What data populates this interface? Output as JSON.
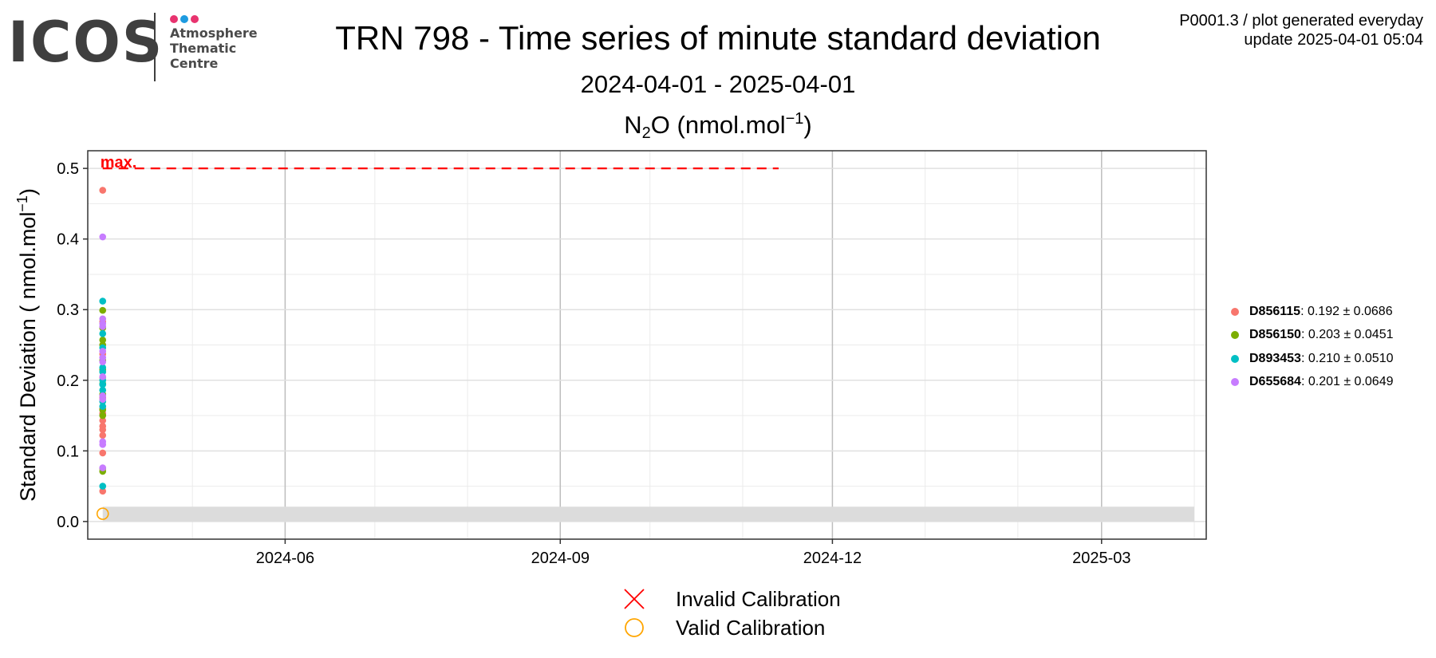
{
  "logo": {
    "wordmark": "ICOS",
    "line1": "Atmosphere",
    "line2": "Thematic",
    "line3": "Centre",
    "dot_colors": [
      "#e8336f",
      "#1e9be0",
      "#e8336f"
    ]
  },
  "header": {
    "title": "TRN 798 - Time series of minute standard deviation",
    "subtitle": "2024-04-01 - 2025-04-01",
    "species_main": "N",
    "species_sub": "2",
    "species_after": "O (nmol.mol",
    "species_sup": "−1",
    "species_close": ")",
    "info_line1": "P0001.3 / plot generated everyday",
    "info_line2": "update  2025-04-01 05:04"
  },
  "chart_data": {
    "type": "scatter",
    "x_range": [
      "2024-03-27",
      "2025-04-05"
    ],
    "ylim": [
      -0.025,
      0.525
    ],
    "yticks": [
      0.0,
      0.1,
      0.2,
      0.3,
      0.4,
      0.5
    ],
    "ytick_labels": [
      "0.0",
      "0.1",
      "0.2",
      "0.3",
      "0.4",
      "0.5"
    ],
    "xticks": [
      "2024-06-01",
      "2024-09-01",
      "2024-12-01",
      "2025-03-01"
    ],
    "xtick_labels": [
      "2024-06",
      "2024-09",
      "2024-12",
      "2025-03"
    ],
    "x_minor_ticks": [
      "2024-05-01",
      "2024-07-01",
      "2024-08-01",
      "2024-10-01",
      "2024-11-01",
      "2025-01-01",
      "2025-02-01",
      "2025-04-01"
    ],
    "y_minor_ticks": [
      0.05,
      0.15,
      0.25,
      0.35,
      0.45
    ],
    "ylabel_main": "Standard Deviation ( nmol.mol",
    "ylabel_sup": "−1",
    "ylabel_close": ")",
    "grid": true,
    "legend_position": "right",
    "max_line": {
      "y": 0.5,
      "x_start": "2024-04-01",
      "x_end": "2024-11-13",
      "label": "max.",
      "color": "#ff0000"
    },
    "shaded_band": {
      "y_min": 0.0,
      "y_max": 0.021,
      "x_start": "2024-04-01",
      "x_end": "2025-04-01",
      "color": "#dcdcdc"
    },
    "series": [
      {
        "name": "D856115",
        "stats": ": 0.192 ± 0.0686",
        "color": "#f8766d",
        "x": "2024-04-01",
        "values": [
          0.469,
          0.283,
          0.237,
          0.204,
          0.175,
          0.16,
          0.153,
          0.143,
          0.135,
          0.13,
          0.122,
          0.097,
          0.043
        ]
      },
      {
        "name": "D856150",
        "stats": ": 0.203 ± 0.0451",
        "color": "#7cae00",
        "x": "2024-04-01",
        "values": [
          0.299,
          0.274,
          0.257,
          0.25,
          0.228,
          0.215,
          0.195,
          0.18,
          0.158,
          0.15,
          0.075,
          0.071
        ]
      },
      {
        "name": "D893453",
        "stats": ": 0.210 ± 0.0510",
        "color": "#00bfc4",
        "x": "2024-04-01",
        "values": [
          0.312,
          0.266,
          0.246,
          0.218,
          0.212,
          0.2,
          0.194,
          0.186,
          0.17,
          0.163,
          0.05
        ]
      },
      {
        "name": "D655684",
        "stats": ": 0.201 ± 0.0649",
        "color": "#c77cff",
        "x": "2024-04-01",
        "values": [
          0.403,
          0.287,
          0.28,
          0.276,
          0.241,
          0.232,
          0.226,
          0.205,
          0.178,
          0.173,
          0.113,
          0.109,
          0.076
        ]
      }
    ],
    "calibration_points": [
      {
        "status": "valid",
        "x": "2024-04-01",
        "y": 0.011
      }
    ]
  },
  "calibration_legend": {
    "invalid_label": "Invalid Calibration",
    "valid_label": "Valid Calibration",
    "invalid_color": "#ff0000",
    "valid_color": "#ffa500"
  }
}
